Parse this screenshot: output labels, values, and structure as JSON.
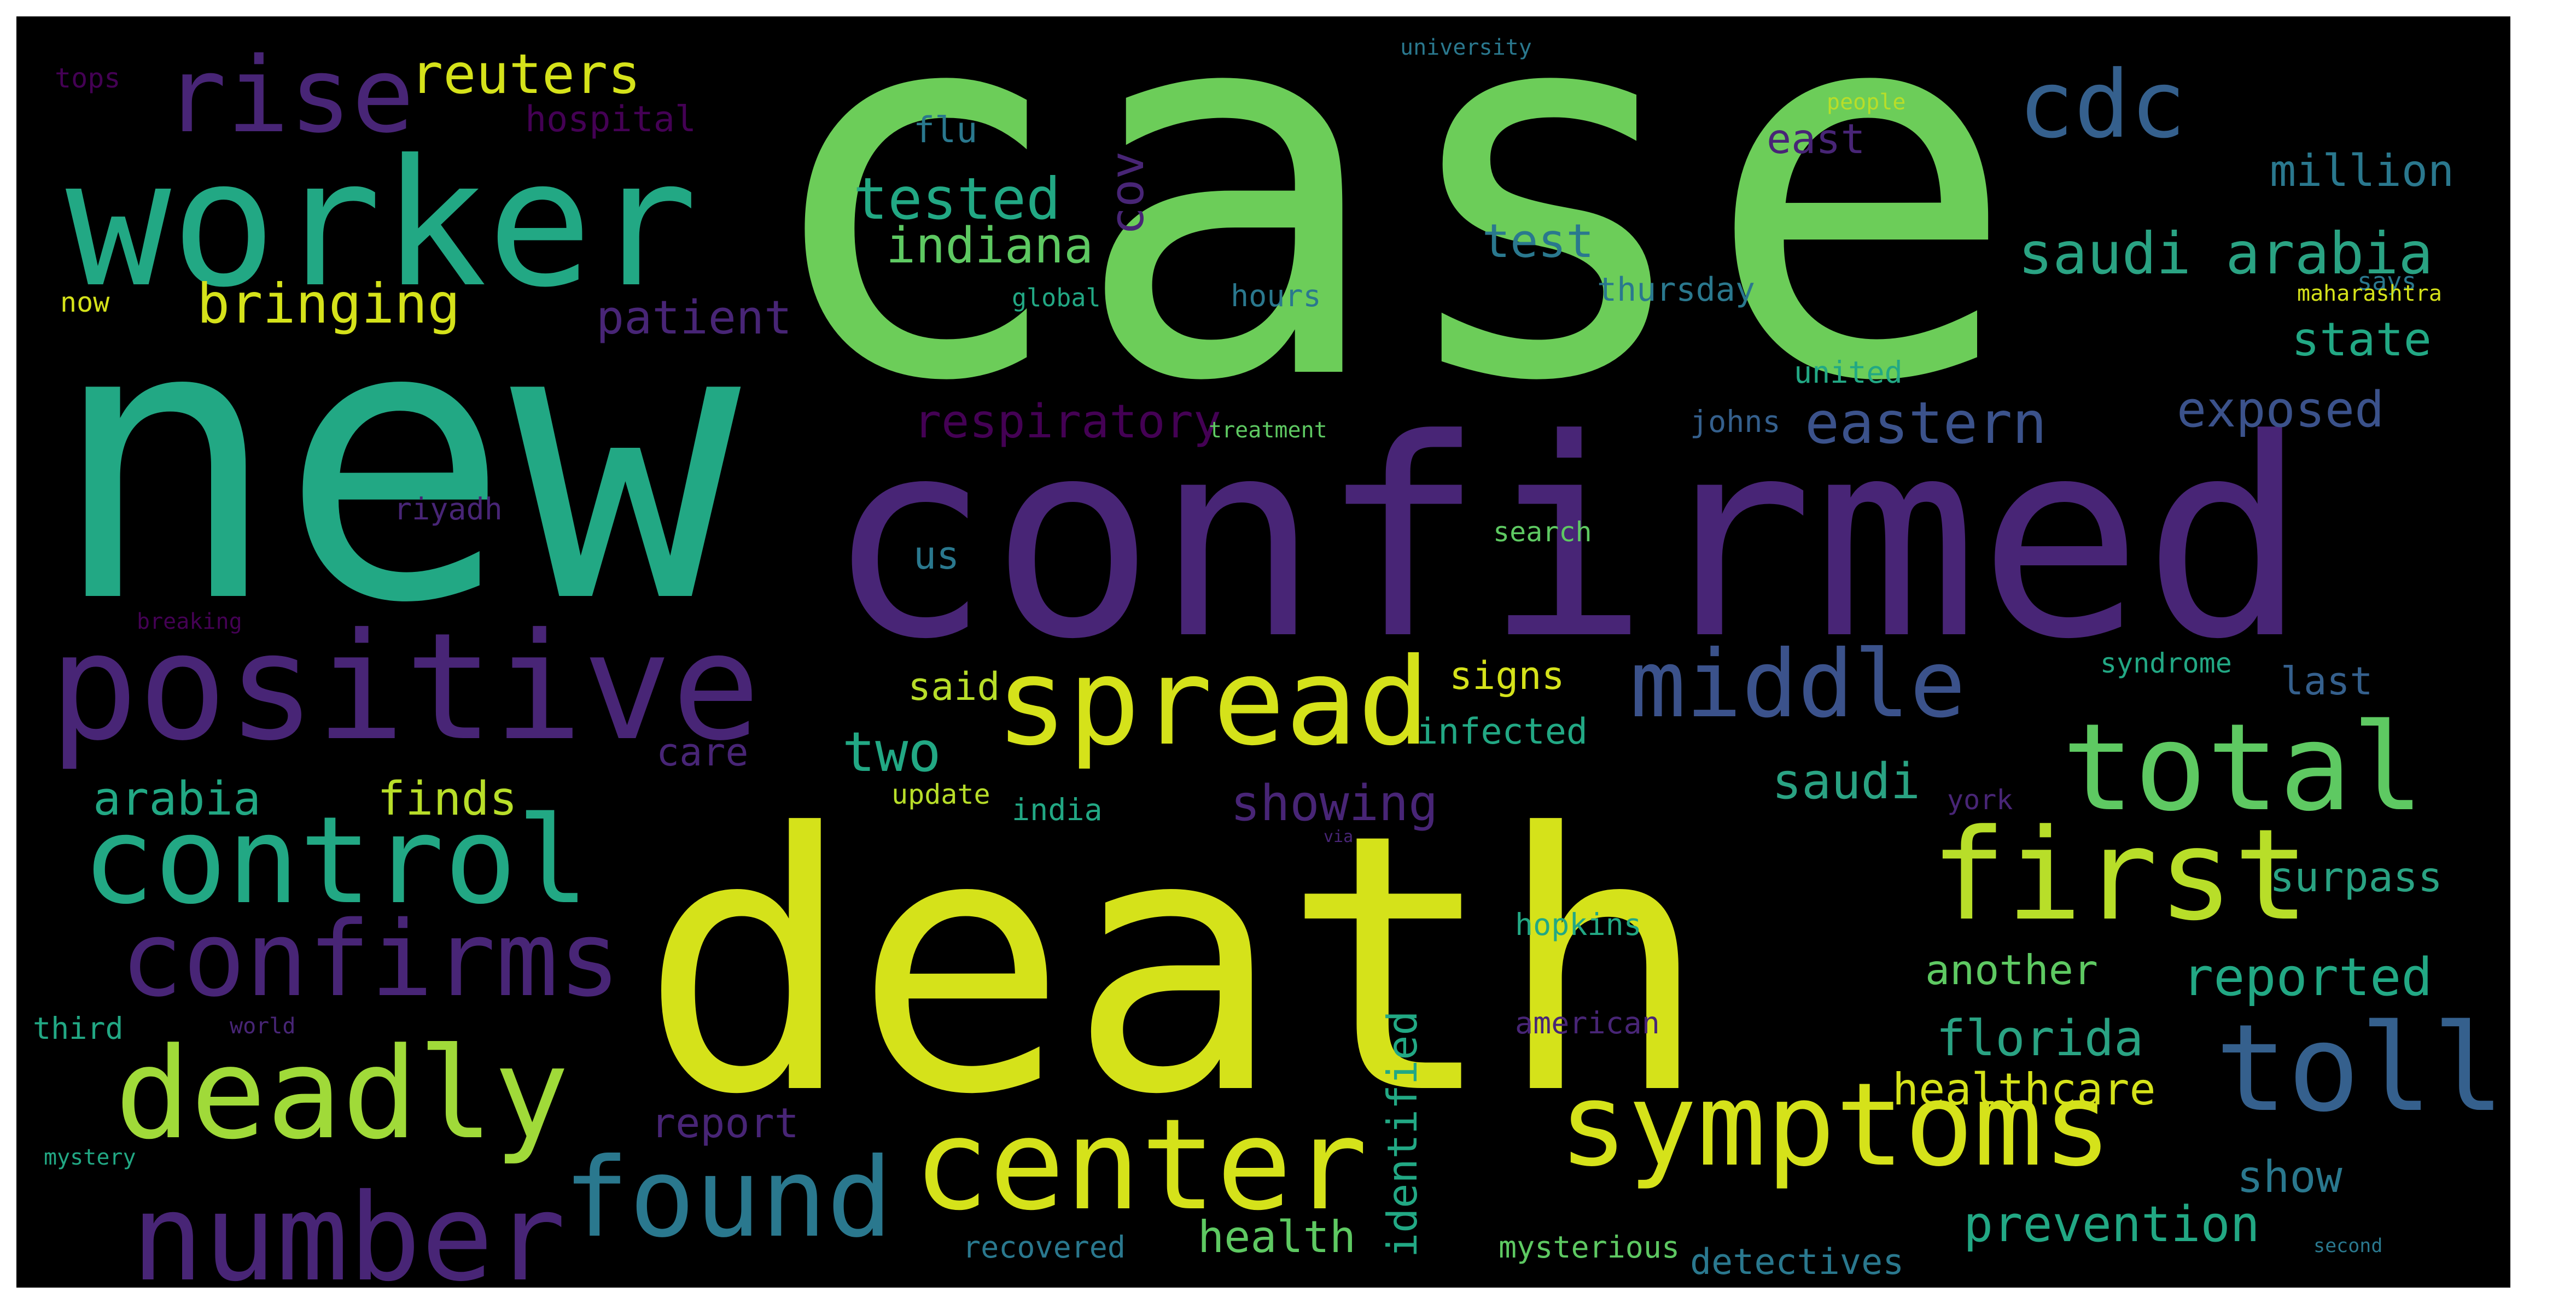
{
  "word_cloud": {
    "background": "#000000",
    "palette": {
      "green": "#6ccd59",
      "teal": "#22a884",
      "purple": "#482576",
      "indigo": "#3b528b",
      "yellow": "#d5e21a",
      "lime": "#a0da39",
      "seagreen": "#2aa383",
      "bluegrey": "#35608d",
      "darkpurple": "#440154",
      "olive": "#b8de29"
    },
    "words": [
      {
        "text": "case",
        "color": "#6ccd59"
      },
      {
        "text": "new",
        "color": "#22a884"
      },
      {
        "text": "confirmed",
        "color": "#482576"
      },
      {
        "text": "death",
        "color": "#d5e21a"
      },
      {
        "text": "worker",
        "color": "#22a884"
      },
      {
        "text": "positive",
        "color": "#482576"
      },
      {
        "text": "rise",
        "color": "#482576"
      },
      {
        "text": "cdc",
        "color": "#35608d"
      },
      {
        "text": "control",
        "color": "#22a884"
      },
      {
        "text": "total",
        "color": "#5ec962"
      },
      {
        "text": "first",
        "color": "#b8de29"
      },
      {
        "text": "spread",
        "color": "#d5e21a"
      },
      {
        "text": "confirms",
        "color": "#482576"
      },
      {
        "text": "deadly",
        "color": "#a0da39"
      },
      {
        "text": "center",
        "color": "#d5e21a"
      },
      {
        "text": "symptoms",
        "color": "#d5e21a"
      },
      {
        "text": "toll",
        "color": "#35608d"
      },
      {
        "text": "number",
        "color": "#482576"
      },
      {
        "text": "found",
        "color": "#2a788e"
      },
      {
        "text": "middle",
        "color": "#3b528b"
      },
      {
        "text": "saudi arabia",
        "color": "#2aa383"
      },
      {
        "text": "bringing",
        "color": "#d5e21a"
      },
      {
        "text": "reuters",
        "color": "#d5e21a"
      },
      {
        "text": "tested",
        "color": "#22a884"
      },
      {
        "text": "indiana",
        "color": "#5ec962"
      },
      {
        "text": "eastern",
        "color": "#3b528b"
      },
      {
        "text": "exposed",
        "color": "#3b528b"
      },
      {
        "text": "state",
        "color": "#22a884"
      },
      {
        "text": "million",
        "color": "#2a788e"
      },
      {
        "text": "patient",
        "color": "#482576"
      },
      {
        "text": "test",
        "color": "#2a788e"
      },
      {
        "text": "respiratory",
        "color": "#440154"
      },
      {
        "text": "cov",
        "color": "#482576"
      },
      {
        "text": "east",
        "color": "#482576"
      },
      {
        "text": "hospital",
        "color": "#440154"
      },
      {
        "text": "flu",
        "color": "#2a788e"
      },
      {
        "text": "tops",
        "color": "#440154"
      },
      {
        "text": "now",
        "color": "#d5e21a"
      },
      {
        "text": "global",
        "color": "#22a884"
      },
      {
        "text": "hours",
        "color": "#2a788e"
      },
      {
        "text": "thursday",
        "color": "#2a788e"
      },
      {
        "text": "says",
        "color": "#2a788e"
      },
      {
        "text": "maharashtra",
        "color": "#d5e21a"
      },
      {
        "text": "united",
        "color": "#22a884"
      },
      {
        "text": "johns",
        "color": "#35608d"
      },
      {
        "text": "treatment",
        "color": "#5ec962"
      },
      {
        "text": "riyadh",
        "color": "#482576"
      },
      {
        "text": "search",
        "color": "#5ec962"
      },
      {
        "text": "us",
        "color": "#2a788e"
      },
      {
        "text": "breaking",
        "color": "#440154"
      },
      {
        "text": "said",
        "color": "#b8de29"
      },
      {
        "text": "signs",
        "color": "#d5e21a"
      },
      {
        "text": "syndrome",
        "color": "#22a884"
      },
      {
        "text": "last",
        "color": "#35608d"
      },
      {
        "text": "two",
        "color": "#22a884"
      },
      {
        "text": "care",
        "color": "#482576"
      },
      {
        "text": "infected",
        "color": "#22a884"
      },
      {
        "text": "saudi",
        "color": "#2aa383"
      },
      {
        "text": "arabia",
        "color": "#22a884"
      },
      {
        "text": "finds",
        "color": "#b8de29"
      },
      {
        "text": "update",
        "color": "#b8de29"
      },
      {
        "text": "india",
        "color": "#22a884"
      },
      {
        "text": "showing",
        "color": "#482576"
      },
      {
        "text": "york",
        "color": "#482576"
      },
      {
        "text": "surpass",
        "color": "#2aa383"
      },
      {
        "text": "hopkins",
        "color": "#22a884"
      },
      {
        "text": "another",
        "color": "#5ec962"
      },
      {
        "text": "reported",
        "color": "#22a884"
      },
      {
        "text": "identified",
        "color": "#22a884"
      },
      {
        "text": "florida",
        "color": "#2aa383"
      },
      {
        "text": "third",
        "color": "#22a884"
      },
      {
        "text": "world",
        "color": "#482576"
      },
      {
        "text": "american",
        "color": "#482576"
      },
      {
        "text": "healthcare",
        "color": "#d5e21a"
      },
      {
        "text": "mystery",
        "color": "#22a884"
      },
      {
        "text": "report",
        "color": "#482576"
      },
      {
        "text": "show",
        "color": "#2a788e"
      },
      {
        "text": "prevention",
        "color": "#22a884"
      },
      {
        "text": "health",
        "color": "#5ec962"
      },
      {
        "text": "recovered",
        "color": "#2a788e"
      },
      {
        "text": "mysterious",
        "color": "#5ec962"
      },
      {
        "text": "detectives",
        "color": "#2a788e"
      },
      {
        "text": "second",
        "color": "#2a788e"
      },
      {
        "text": "university",
        "color": "#2a788e"
      },
      {
        "text": "people",
        "color": "#b8de29"
      },
      {
        "text": "via",
        "color": "#482576"
      }
    ]
  }
}
